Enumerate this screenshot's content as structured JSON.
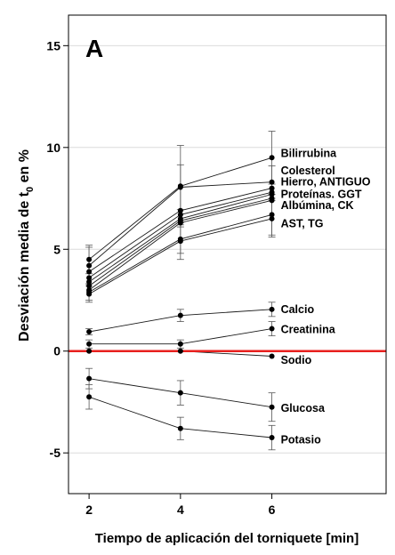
{
  "chart_data": {
    "type": "line",
    "panel_label": "A",
    "xlabel": "Tiempo de aplicación del torniquete [min]",
    "ylabel_parts": [
      "Desviación media de t",
      "0",
      " en %"
    ],
    "x_ticks": [
      2,
      4,
      6
    ],
    "y_ticks": [
      -5,
      0,
      5,
      10,
      15
    ],
    "xlim": [
      1.55,
      8.5
    ],
    "ylim": [
      -7,
      16.5
    ],
    "grid": "horizontal",
    "reference_line": {
      "y": 0,
      "color": "#e8201e"
    },
    "series": [
      {
        "x": [
          2,
          4,
          6
        ],
        "y": [
          4.5,
          8.1,
          9.5
        ],
        "err": [
          0.7,
          2.0,
          1.3
        ]
      },
      {
        "x": [
          2,
          4,
          6
        ],
        "y": [
          4.2,
          8.05,
          8.3
        ],
        "err": [
          0.9,
          1.1,
          0.8
        ]
      },
      {
        "x": [
          2,
          4,
          6
        ],
        "y": [
          3.9,
          6.9,
          8.0
        ],
        "err": null
      },
      {
        "x": [
          2,
          4,
          6
        ],
        "y": [
          3.6,
          6.7,
          7.8
        ],
        "err": null
      },
      {
        "x": [
          2,
          4,
          6
        ],
        "y": [
          3.4,
          6.5,
          7.7
        ],
        "err": null
      },
      {
        "x": [
          2,
          4,
          6
        ],
        "y": [
          3.2,
          6.4,
          7.5
        ],
        "err": null
      },
      {
        "x": [
          2,
          4,
          6
        ],
        "y": [
          3.0,
          6.3,
          7.4
        ],
        "err": null
      },
      {
        "x": [
          2,
          4,
          6
        ],
        "y": [
          2.9,
          5.5,
          6.7
        ],
        "err": [
          0.4,
          0.7,
          1.0
        ]
      },
      {
        "x": [
          2,
          4,
          6
        ],
        "y": [
          2.8,
          5.4,
          6.5
        ],
        "err": [
          0.4,
          0.9,
          0.9
        ]
      },
      {
        "x": [
          2,
          4,
          6
        ],
        "y": [
          0.95,
          1.75,
          2.05
        ],
        "err": [
          0.15,
          0.3,
          0.35
        ]
      },
      {
        "x": [
          2,
          4,
          6
        ],
        "y": [
          0.35,
          0.35,
          1.1
        ],
        "err": [
          0.2,
          0.2,
          0.35
        ]
      },
      {
        "x": [
          2,
          4,
          6
        ],
        "y": [
          0.0,
          0.0,
          -0.25
        ],
        "err": null
      },
      {
        "x": [
          2,
          4,
          6
        ],
        "y": [
          -1.35,
          -2.05,
          -2.75
        ],
        "err": [
          0.5,
          0.6,
          0.7
        ]
      },
      {
        "x": [
          2,
          4,
          6
        ],
        "y": [
          -2.25,
          -3.8,
          -4.25
        ],
        "err": [
          0.6,
          0.55,
          0.6
        ]
      }
    ],
    "annotations": [
      {
        "text": "Bilirrubina",
        "y": 9.7
      },
      {
        "text": "Colesterol",
        "y": 8.85
      },
      {
        "text": "Hierro, ANTIGUO",
        "y": 8.3
      },
      {
        "text": "Proteínas. GGT",
        "y": 7.7
      },
      {
        "text": "Albúmina, CK",
        "y": 7.15
      },
      {
        "text": "AST, TG",
        "y": 6.25
      },
      {
        "text": "Calcio",
        "y": 2.05
      },
      {
        "text": "Creatinina",
        "y": 1.05
      },
      {
        "text": "Sodio",
        "y": -0.45
      },
      {
        "text": "Glucosa",
        "y": -2.8
      },
      {
        "text": "Potasio",
        "y": -4.35
      }
    ]
  }
}
